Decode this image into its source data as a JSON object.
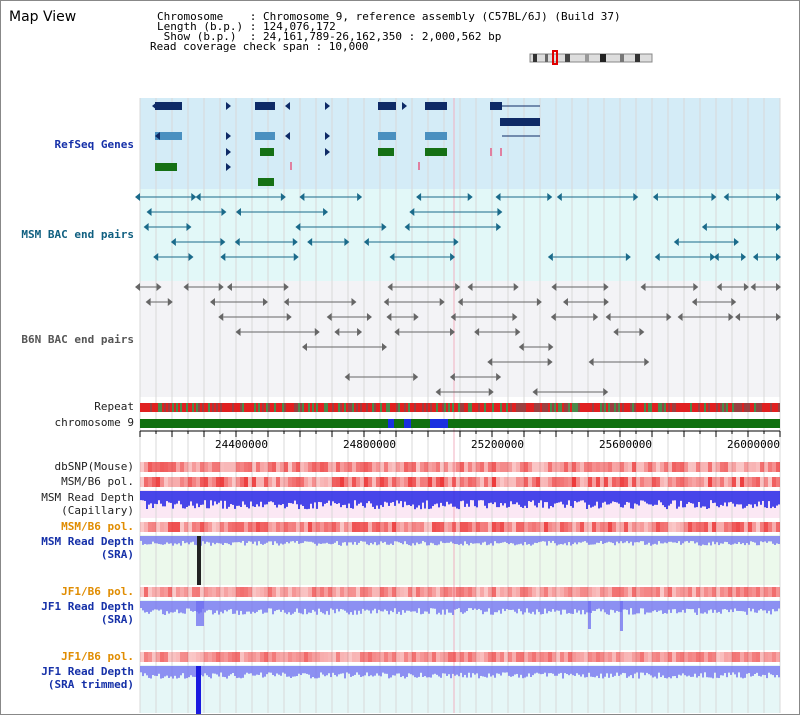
{
  "title": "Map View",
  "header": {
    "lines": [
      "Chromosome    : Chromosome 9, reference assembly (C57BL/6J) (Build 37)",
      "Length (b.p.) : 124,076,172",
      " Show (b.p.)  : 24,161,789-26,162,350 : 2,000,562 bp",
      "Read coverage check span : 10,000"
    ]
  },
  "tracks": {
    "refseq": "RefSeq Genes",
    "msm_bac": "MSM BAC end pairs",
    "b6n_bac": "B6N BAC end pairs",
    "repeat": "Repeat",
    "chromosome": "chromosome 9",
    "dbsnp": "dbSNP(Mouse)",
    "msm_b6_pol_1": "MSM/B6 pol.",
    "msm_read_depth_cap_1": "MSM Read Depth",
    "msm_read_depth_cap_2": "(Capillary)",
    "msm_b6_pol_2": "MSM/B6 pol.",
    "msm_read_depth_sra_1": "MSM Read Depth",
    "msm_read_depth_sra_2": "(SRA)",
    "jf1_b6_pol_1": "JF1/B6 pol.",
    "jf1_read_depth_sra_1": "JF1 Read Depth",
    "jf1_read_depth_sra_2": "(SRA)",
    "jf1_b6_pol_2": "JF1/B6 pol.",
    "jf1_read_depth_trim_1": "JF1 Read Depth",
    "jf1_read_depth_trim_2": "(SRA trimmed)"
  },
  "axis": {
    "ticks": [
      "24400000",
      "24800000",
      "25200000",
      "25600000",
      "26000000"
    ]
  },
  "colors": {
    "refseq_bg": "#d4ecf7",
    "gene_navy": "#0e2a66",
    "gene_light": "#4a90c0",
    "gene_green": "#157015",
    "bac_teal": "#1a6a8a",
    "b6n_gray": "#666666",
    "repeat_red": "#e02020",
    "chrom_green": "#107010",
    "chrom_blue": "#1a30e0",
    "pol_red": "#f06060",
    "depth_blue": "#3040e0",
    "orange": "#e08c00"
  }
}
